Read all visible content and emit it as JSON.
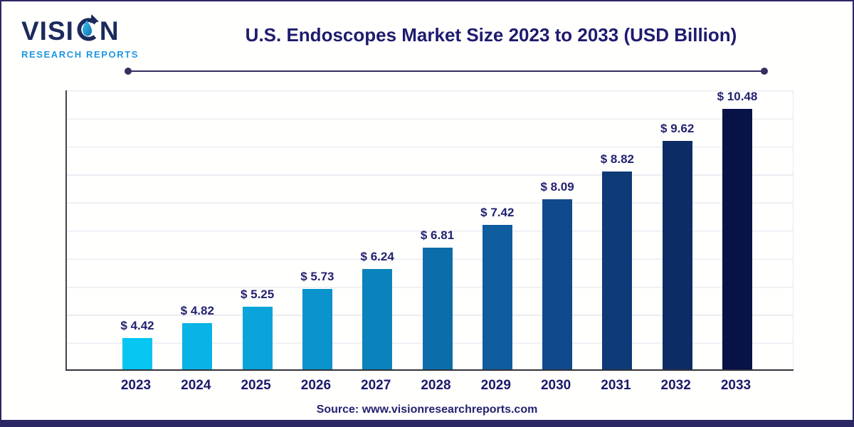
{
  "logo": {
    "word_start": "VISI",
    "word_end": "N",
    "subtitle": "RESEARCH REPORTS"
  },
  "header": {
    "title": "U.S. Endoscopes Market Size 2023 to 2033 (USD Billion)"
  },
  "chart_data": {
    "type": "bar",
    "title": "U.S. Endoscopes Market Size 2023 to 2033 (USD Billion)",
    "unit": "USD Billion",
    "categories": [
      "2023",
      "2024",
      "2025",
      "2026",
      "2027",
      "2028",
      "2029",
      "2030",
      "2031",
      "2032",
      "2033"
    ],
    "values": [
      4.42,
      4.82,
      5.25,
      5.73,
      6.24,
      6.81,
      7.42,
      8.09,
      8.82,
      9.62,
      10.48
    ],
    "value_labels": [
      "$ 4.42",
      "$ 4.82",
      "$ 5.25",
      "$ 5.73",
      "$ 6.24",
      "$ 6.81",
      "$ 7.42",
      "$ 8.09",
      "$ 8.82",
      "$ 9.62",
      "$ 10.48"
    ],
    "bar_colors": [
      "#07c6f2",
      "#09b3e6",
      "#0aa4da",
      "#0a93cc",
      "#0a83bc",
      "#0d6dab",
      "#0f5c9e",
      "#114a8c",
      "#0e3a77",
      "#0d2c66",
      "#091247"
    ],
    "ylim": [
      3.6,
      11.0
    ],
    "grid": true,
    "gridline_color": "#ecebf1",
    "axis_color": "#3c3c44",
    "label_color": "#232270",
    "legend": "none"
  },
  "footer": {
    "source": "Source: www.visionresearchreports.com"
  },
  "theme": {
    "accent_navy": "#2b2764",
    "logo_navy": "#1c2a5c",
    "logo_blue": "#1e96e0",
    "title_color": "#1e1b6e"
  }
}
